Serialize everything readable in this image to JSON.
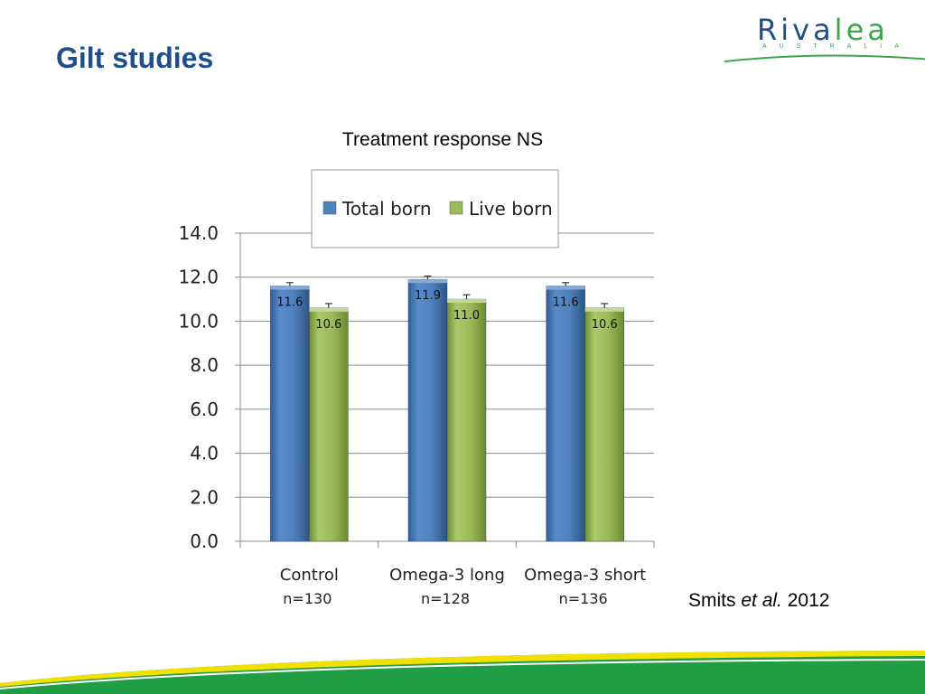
{
  "slide": {
    "title": "Gilt studies",
    "citation_author": "Smits",
    "citation_etal": "et al.",
    "citation_year": "2012"
  },
  "logo": {
    "word_part1": "Riva",
    "word_part2": "lea",
    "subtext": "AUSTRALIA",
    "colors": {
      "navy": "#1f4e8c",
      "green": "#3aa84a"
    }
  },
  "chart_data": {
    "type": "bar",
    "title": "Treatment response NS",
    "categories": [
      "Control",
      "Omega-3 long",
      "Omega-3 short"
    ],
    "category_sublabels": [
      "n=130",
      "n=128",
      "n=136"
    ],
    "series": [
      {
        "name": "Total born",
        "values": [
          11.6,
          11.9,
          11.6
        ],
        "labels": [
          "11.6",
          "11.9",
          "11.6"
        ],
        "error": [
          0.15,
          0.15,
          0.15
        ],
        "color": "#4f81bd"
      },
      {
        "name": "Live born",
        "values": [
          10.6,
          11.0,
          10.6
        ],
        "labels": [
          "10.6",
          "11.0",
          "10.6"
        ],
        "error": [
          0.2,
          0.2,
          0.2
        ],
        "color": "#9bbb59"
      }
    ],
    "ylim": [
      0,
      14
    ],
    "yticks": [
      "0.0",
      "2.0",
      "4.0",
      "6.0",
      "8.0",
      "10.0",
      "12.0",
      "14.0"
    ],
    "grid": true,
    "legend_position": "top"
  }
}
